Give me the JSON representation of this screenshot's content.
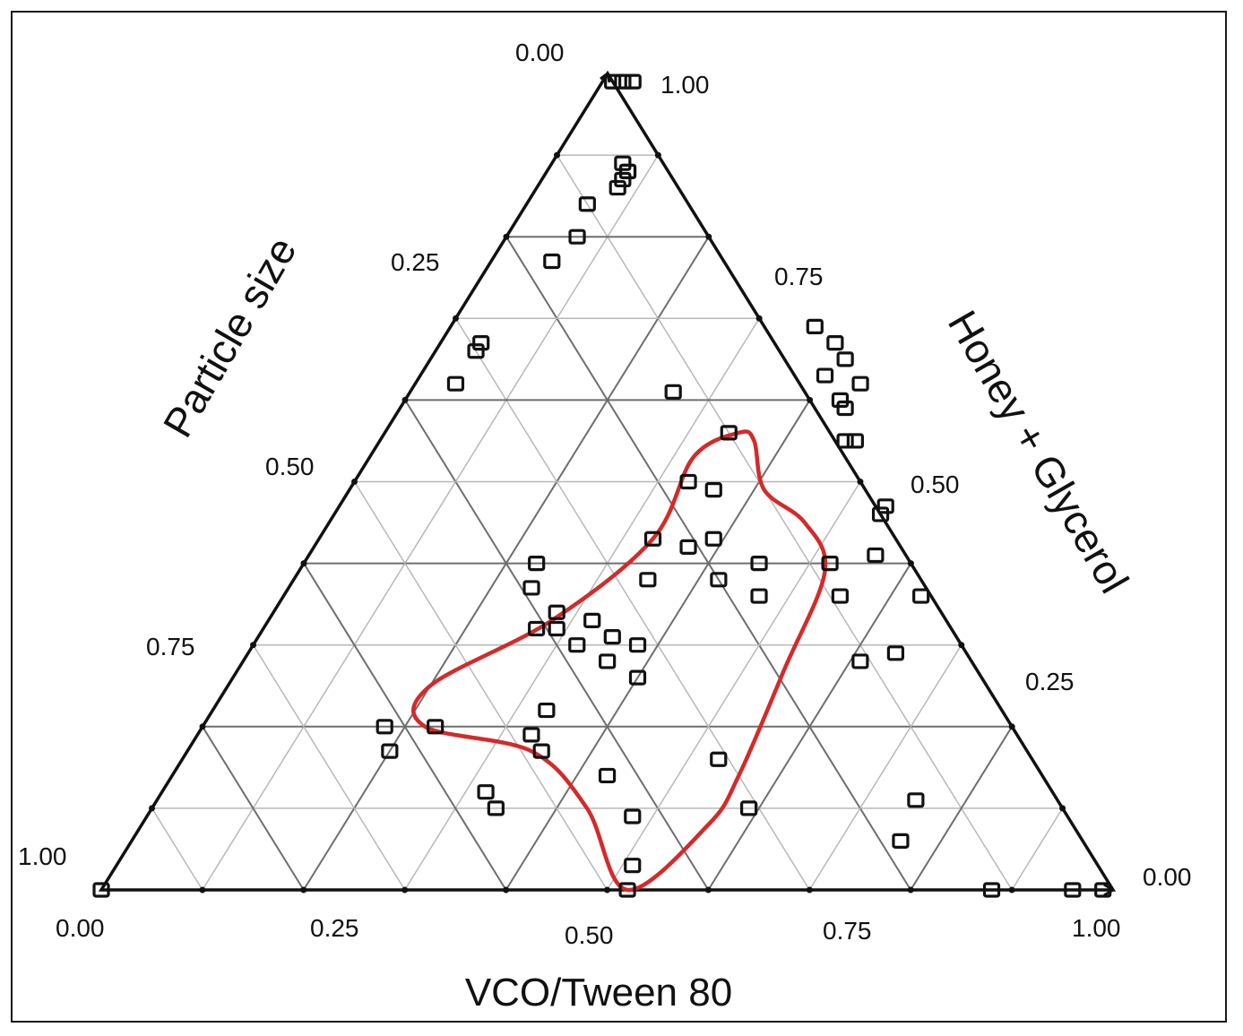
{
  "chart_data": {
    "type": "scatter",
    "subtype": "ternary",
    "axes": {
      "bottom": {
        "title": "VCO/Tween 80",
        "ticks": [
          "0.00",
          "0.25",
          "0.50",
          "0.75",
          "1.00"
        ]
      },
      "left": {
        "title": "Particle size",
        "ticks": [
          "0.00",
          "0.25",
          "0.50",
          "0.75",
          "1.00"
        ]
      },
      "right": {
        "title": "Honey + Glycerol",
        "ticks": [
          "1.00",
          "0.75",
          "0.50",
          "0.25",
          "0.00"
        ]
      }
    },
    "grid_step": 0.1,
    "grid": true,
    "marker": "open-square",
    "series": [
      {
        "points": [
          {
            "vco": 0.01,
            "honey": 0.99
          },
          {
            "vco": 0.02,
            "honey": 0.99
          },
          {
            "vco": 0.03,
            "honey": 0.99
          },
          {
            "vco": 0.07,
            "honey": 0.89
          },
          {
            "vco": 0.08,
            "honey": 0.88
          },
          {
            "vco": 0.08,
            "honey": 0.87
          },
          {
            "vco": 0.08,
            "honey": 0.86
          },
          {
            "vco": 0.06,
            "honey": 0.84
          },
          {
            "vco": 0.07,
            "honey": 0.8
          },
          {
            "vco": 0.06,
            "honey": 0.77
          },
          {
            "vco": 0.04,
            "honey": 0.66
          },
          {
            "vco": 0.04,
            "honey": 0.67
          },
          {
            "vco": 0.04,
            "honey": 0.62
          },
          {
            "vco": 0.08,
            "honey": 0.88
          },
          {
            "vco": 0.26,
            "honey": 0.61
          },
          {
            "vco": 0.36,
            "honey": 0.69
          },
          {
            "vco": 0.39,
            "honey": 0.67
          },
          {
            "vco": 0.41,
            "honey": 0.65
          },
          {
            "vco": 0.4,
            "honey": 0.63
          },
          {
            "vco": 0.44,
            "honey": 0.62
          },
          {
            "vco": 0.43,
            "honey": 0.6
          },
          {
            "vco": 0.44,
            "honey": 0.59
          },
          {
            "vco": 0.46,
            "honey": 0.55
          },
          {
            "vco": 0.47,
            "honey": 0.55
          },
          {
            "vco": 0.34,
            "honey": 0.56
          },
          {
            "vco": 0.33,
            "honey": 0.5
          },
          {
            "vco": 0.36,
            "honey": 0.49
          },
          {
            "vco": 0.33,
            "honey": 0.43
          },
          {
            "vco": 0.37,
            "honey": 0.42
          },
          {
            "vco": 0.39,
            "honey": 0.43
          },
          {
            "vco": 0.35,
            "honey": 0.38
          },
          {
            "vco": 0.42,
            "honey": 0.38
          },
          {
            "vco": 0.23,
            "honey": 0.4
          },
          {
            "vco": 0.24,
            "honey": 0.37
          },
          {
            "vco": 0.28,
            "honey": 0.34
          },
          {
            "vco": 0.27,
            "honey": 0.32
          },
          {
            "vco": 0.29,
            "honey": 0.32
          },
          {
            "vco": 0.32,
            "honey": 0.33
          },
          {
            "vco": 0.32,
            "honey": 0.3
          },
          {
            "vco": 0.35,
            "honey": 0.31
          },
          {
            "vco": 0.36,
            "honey": 0.28
          },
          {
            "vco": 0.38,
            "honey": 0.3
          },
          {
            "vco": 0.4,
            "honey": 0.26
          },
          {
            "vco": 0.45,
            "honey": 0.4
          },
          {
            "vco": 0.47,
            "honey": 0.36
          },
          {
            "vco": 0.52,
            "honey": 0.4
          },
          {
            "vco": 0.55,
            "honey": 0.36
          },
          {
            "vco": 0.63,
            "honey": 0.36
          },
          {
            "vco": 0.54,
            "honey": 0.46
          },
          {
            "vco": 0.54,
            "honey": 0.47
          },
          {
            "vco": 0.56,
            "honey": 0.41
          },
          {
            "vco": 0.61,
            "honey": 0.28
          },
          {
            "vco": 0.64,
            "honey": 0.29
          },
          {
            "vco": 0.18,
            "honey": 0.2
          },
          {
            "vco": 0.23,
            "honey": 0.2
          },
          {
            "vco": 0.2,
            "honey": 0.17
          },
          {
            "vco": 0.33,
            "honey": 0.22
          },
          {
            "vco": 0.33,
            "honey": 0.19
          },
          {
            "vco": 0.35,
            "honey": 0.17
          },
          {
            "vco": 0.32,
            "honey": 0.12
          },
          {
            "vco": 0.34,
            "honey": 0.1
          },
          {
            "vco": 0.43,
            "honey": 0.14
          },
          {
            "vco": 0.48,
            "honey": 0.09
          },
          {
            "vco": 0.53,
            "honey": 0.16
          },
          {
            "vco": 0.59,
            "honey": 0.1
          },
          {
            "vco": 0.51,
            "honey": 0.03
          },
          {
            "vco": 0.52,
            "honey": 0.0
          },
          {
            "vco": 0.76,
            "honey": 0.06
          },
          {
            "vco": 0.75,
            "honey": 0.11
          },
          {
            "vco": 0.88,
            "honey": 0.0
          },
          {
            "vco": 0.96,
            "honey": 0.0
          },
          {
            "vco": 0.99,
            "honey": 0.0
          },
          {
            "vco": 0.0,
            "honey": 0.0
          }
        ]
      }
    ],
    "region": {
      "color": "#d42a2a",
      "outline": [
        {
          "vco": 0.35,
          "honey": 0.56
        },
        {
          "vco": 0.37,
          "honey": 0.55
        },
        {
          "vco": 0.41,
          "honey": 0.49
        },
        {
          "vco": 0.47,
          "honey": 0.45
        },
        {
          "vco": 0.52,
          "honey": 0.39
        },
        {
          "vco": 0.54,
          "honey": 0.27
        },
        {
          "vco": 0.56,
          "honey": 0.14
        },
        {
          "vco": 0.56,
          "honey": 0.08
        },
        {
          "vco": 0.52,
          "honey": 0.0
        },
        {
          "vco": 0.43,
          "honey": 0.1
        },
        {
          "vco": 0.34,
          "honey": 0.17
        },
        {
          "vco": 0.22,
          "honey": 0.2
        },
        {
          "vco": 0.2,
          "honey": 0.25
        },
        {
          "vco": 0.28,
          "honey": 0.33
        },
        {
          "vco": 0.33,
          "honey": 0.43
        },
        {
          "vco": 0.32,
          "honey": 0.53
        }
      ]
    }
  }
}
